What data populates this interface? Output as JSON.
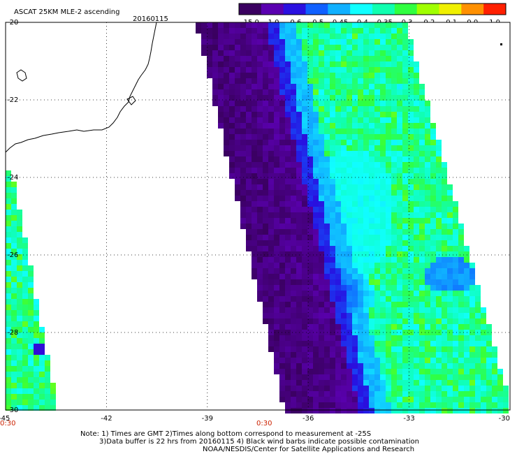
{
  "title": "ASCAT 25KM MLE-2 ascending",
  "date": "20160115",
  "colorbar": {
    "labels": [
      "-15.0",
      "-1.0",
      "-0.6",
      "-0.5",
      "-0.45",
      "-0.4",
      "-0.35",
      "-0.3",
      "-0.2",
      "-0.1",
      "0.0",
      "1.0"
    ],
    "colors": [
      "#3a0060",
      "#5a00b0",
      "#2a10e0",
      "#1060ff",
      "#10b0ff",
      "#10ffff",
      "#10ffb0",
      "#30ff40",
      "#a0ff00",
      "#f0f000",
      "#ff9000",
      "#ff2000"
    ]
  },
  "map": {
    "lon_ticks": [
      -45,
      -42,
      -39,
      -36,
      -33,
      -30
    ],
    "lon_labels": [
      "-45",
      "-42",
      "-39",
      "-36",
      "-33",
      "-30"
    ],
    "lat_ticks": [
      -20,
      -22,
      -24,
      -26,
      -28,
      -30
    ],
    "lat_labels": [
      "-20",
      "-22",
      "-24",
      "-26",
      "-28",
      "-30"
    ],
    "lon_range": [
      -45,
      -30
    ],
    "lat_range": [
      -30,
      -20
    ],
    "grid": "dotted"
  },
  "times": [
    {
      "text": "0:30",
      "lon": -45
    },
    {
      "text": "0:30",
      "lon": -37.5
    }
  ],
  "notes": {
    "line1": "Note: 1) Times are GMT 2)Times along bottom correspond to measurement at -25S",
    "line2": "3)Data buffer is 22 hrs from 20160115 4) Black wind barbs indicate possible contamination",
    "line3": "NOAA/NESDIS/Center for Satellite Applications and Research"
  }
}
